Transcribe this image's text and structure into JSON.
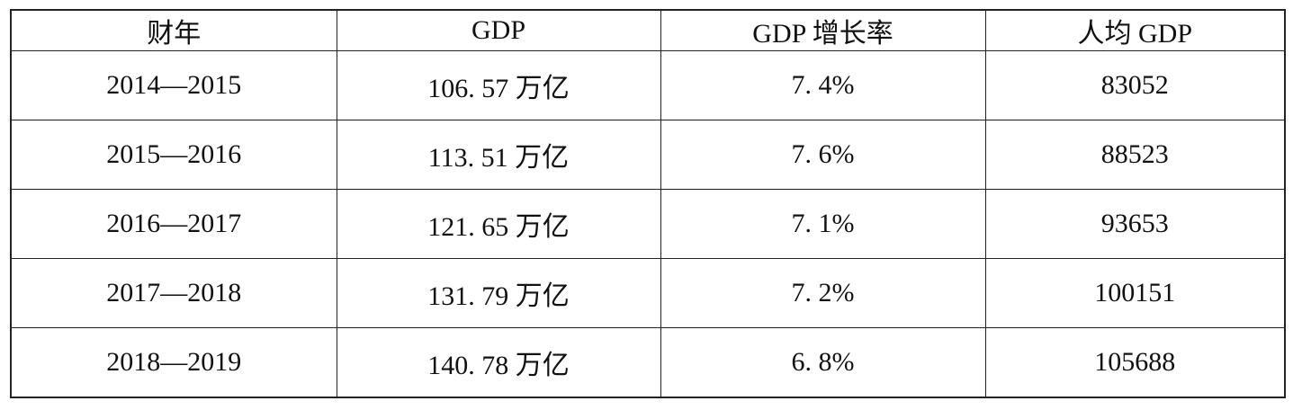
{
  "table": {
    "header": [
      "财年",
      "GDP",
      "GDP 增长率",
      "人均 GDP"
    ],
    "rows": [
      [
        "2014—2015",
        "106. 57 万亿",
        "7. 4%",
        "83052"
      ],
      [
        "2015—2016",
        "113. 51 万亿",
        "7. 6%",
        "88523"
      ],
      [
        "2016—2017",
        "121. 65 万亿",
        "7. 1%",
        "93653"
      ],
      [
        "2017—2018",
        "131. 79 万亿",
        "7. 2%",
        "100151"
      ],
      [
        "2018—2019",
        "140. 78 万亿",
        "6. 8%",
        "105688"
      ]
    ]
  }
}
